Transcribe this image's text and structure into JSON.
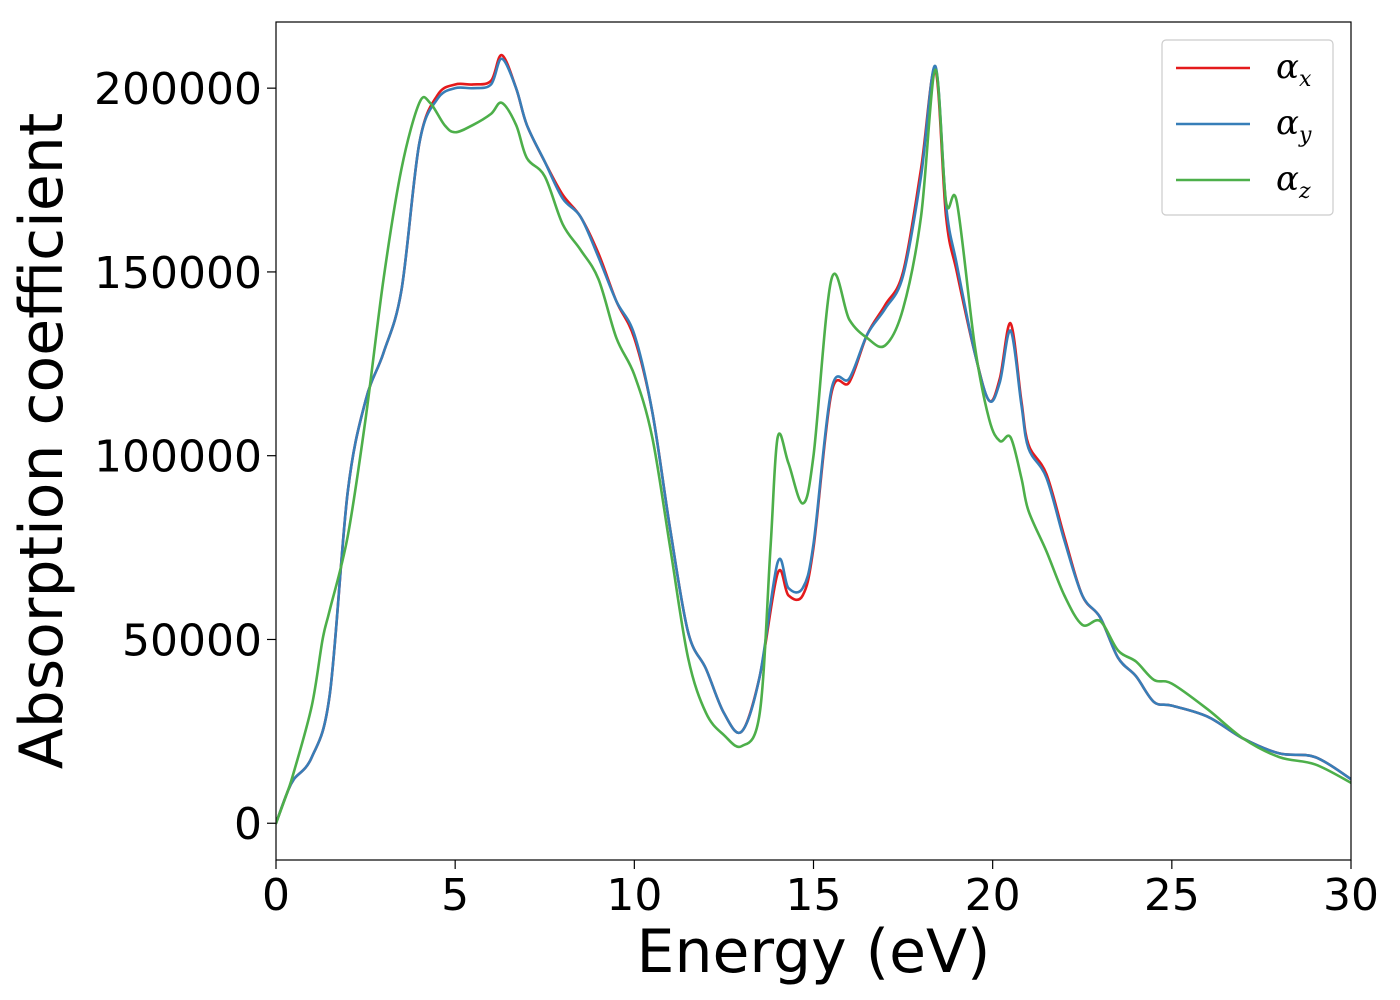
{
  "chart_data": {
    "type": "line",
    "title": "",
    "xlabel": "Energy (eV)",
    "ylabel": "Absorption coefficient",
    "xlim": [
      0,
      30
    ],
    "ylim": [
      -10000,
      218000
    ],
    "xticks": [
      0,
      5,
      10,
      15,
      20,
      25,
      30
    ],
    "yticks": [
      0,
      50000,
      100000,
      150000,
      200000
    ],
    "xtick_labels": [
      "0",
      "5",
      "10",
      "15",
      "20",
      "25",
      "30"
    ],
    "ytick_labels": [
      "0",
      "50000",
      "100000",
      "150000",
      "200000"
    ],
    "grid": false,
    "legend_position": "top-right",
    "series": [
      {
        "name": "α",
        "subscript": "x",
        "color": "#e41a1c",
        "x": [
          0,
          0.3,
          0.5,
          1,
          1.5,
          2,
          2.5,
          3,
          3.5,
          4,
          4.5,
          5,
          5.5,
          6,
          6.3,
          6.7,
          7,
          7.5,
          8,
          8.5,
          9,
          9.5,
          10,
          10.5,
          11,
          11.5,
          12,
          12.5,
          13,
          13.5,
          14,
          14.3,
          14.7,
          15,
          15.5,
          16,
          16.5,
          17,
          17.5,
          18,
          18.4,
          18.7,
          19,
          19.5,
          19.9,
          20.2,
          20.5,
          20.8,
          21,
          21.5,
          22,
          22.5,
          23,
          23.5,
          24,
          24.5,
          25,
          26,
          27,
          28,
          29,
          30
        ],
        "y": [
          0,
          8000,
          12000,
          18000,
          35000,
          90000,
          115000,
          128000,
          145000,
          185000,
          198000,
          201000,
          201000,
          202000,
          209000,
          200000,
          190000,
          180000,
          171000,
          165000,
          155000,
          142000,
          132000,
          112000,
          80000,
          52000,
          42000,
          30000,
          25000,
          40000,
          68000,
          62000,
          62000,
          75000,
          117000,
          120000,
          133000,
          141000,
          150000,
          178000,
          205000,
          165000,
          150000,
          128000,
          115000,
          121000,
          136000,
          115000,
          103000,
          95000,
          78000,
          62000,
          56000,
          45000,
          40000,
          33000,
          32000,
          29000,
          23000,
          19000,
          18000,
          12000
        ]
      },
      {
        "name": "α",
        "subscript": "y",
        "color": "#377eb8",
        "x": [
          0,
          0.3,
          0.5,
          1,
          1.5,
          2,
          2.5,
          3,
          3.5,
          4,
          4.5,
          5,
          5.5,
          6,
          6.3,
          6.7,
          7,
          7.5,
          8,
          8.5,
          9,
          9.5,
          10,
          10.5,
          11,
          11.5,
          12,
          12.5,
          13,
          13.5,
          14,
          14.3,
          14.7,
          15,
          15.5,
          16,
          16.5,
          17,
          17.5,
          18,
          18.4,
          18.7,
          19,
          19.5,
          19.9,
          20.2,
          20.5,
          20.8,
          21,
          21.5,
          22,
          22.5,
          23,
          23.5,
          24,
          24.5,
          25,
          26,
          27,
          28,
          29,
          30
        ],
        "y": [
          0,
          8000,
          12000,
          18000,
          35000,
          90000,
          115000,
          128000,
          145000,
          185000,
          197000,
          200000,
          200000,
          201000,
          208000,
          200000,
          190000,
          180000,
          170000,
          165000,
          154000,
          142000,
          133000,
          112000,
          80000,
          52000,
          42000,
          30000,
          25000,
          40000,
          71000,
          64000,
          64000,
          76000,
          118000,
          121000,
          133000,
          140000,
          149000,
          176000,
          206000,
          168000,
          152000,
          128000,
          115000,
          120000,
          134000,
          114000,
          102000,
          94000,
          77000,
          62000,
          56000,
          45000,
          40000,
          33000,
          32000,
          29000,
          23000,
          19000,
          18000,
          12000
        ]
      },
      {
        "name": "α",
        "subscript": "z",
        "color": "#4daf4a",
        "x": [
          0,
          0.3,
          0.5,
          1,
          1.3,
          1.5,
          2,
          2.5,
          3,
          3.5,
          4,
          4.3,
          4.7,
          5,
          5.5,
          6,
          6.3,
          6.7,
          7,
          7.5,
          8,
          8.5,
          9,
          9.5,
          10,
          10.5,
          11,
          11.5,
          12,
          12.5,
          13,
          13.5,
          13.8,
          14,
          14.3,
          14.7,
          15,
          15.5,
          16,
          16.5,
          17,
          17.5,
          18,
          18.4,
          18.7,
          19,
          19.5,
          19.9,
          20.2,
          20.5,
          20.8,
          21,
          21.5,
          22,
          22.5,
          23,
          23.5,
          24,
          24.5,
          25,
          26,
          27,
          28,
          29,
          30
        ],
        "y": [
          0,
          8000,
          14000,
          32000,
          50000,
          58000,
          78000,
          110000,
          148000,
          178000,
          196000,
          196000,
          190000,
          188000,
          190000,
          193000,
          196000,
          190000,
          181000,
          176000,
          163000,
          156000,
          148000,
          132000,
          122000,
          105000,
          75000,
          45000,
          30000,
          24000,
          21000,
          30000,
          75000,
          105000,
          98000,
          87000,
          100000,
          148000,
          137000,
          132000,
          130000,
          140000,
          165000,
          205000,
          169000,
          169000,
          130000,
          110000,
          104000,
          105000,
          94000,
          85000,
          74000,
          62000,
          54000,
          55000,
          47000,
          44000,
          39000,
          38000,
          31000,
          23000,
          18000,
          16000,
          11000
        ]
      }
    ]
  }
}
